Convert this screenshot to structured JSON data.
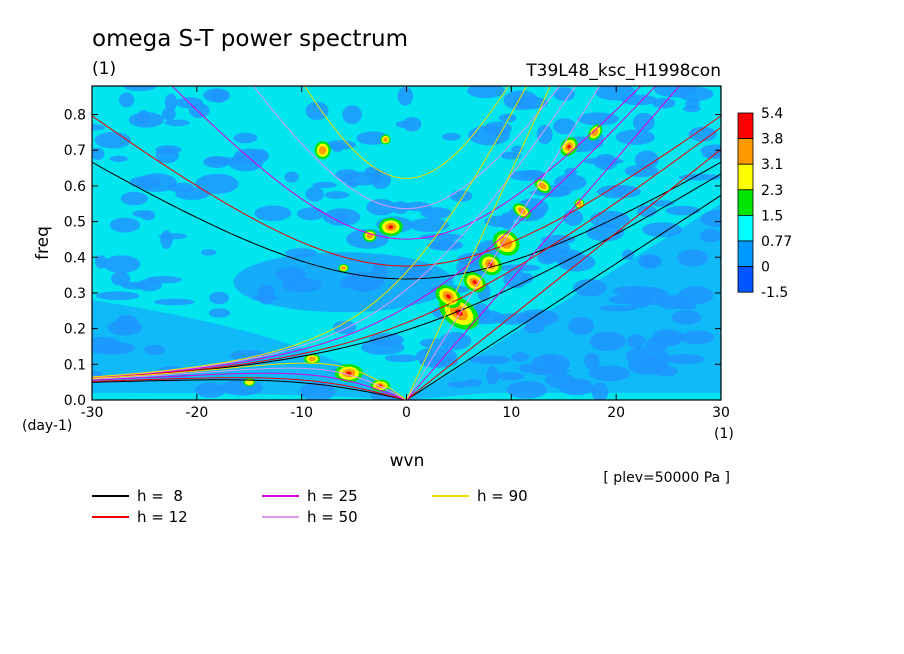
{
  "chart_data": {
    "type": "heatmap",
    "title": "omega S-T power spectrum",
    "subtitle_left": "(1)",
    "subtitle_right": "T39L48_ksc_H1998con",
    "xlabel": "wvn",
    "ylabel": "freq",
    "x_unit": "(1)",
    "y_unit": "(day-1)",
    "annotation": "[ plev=50000 Pa ]",
    "xlim": [
      -30,
      30
    ],
    "ylim": [
      0,
      0.88
    ],
    "xticks": [
      "-30",
      "-20",
      "-10",
      "0",
      "10",
      "20",
      "30"
    ],
    "yticks": [
      "0.0",
      "0.1",
      "0.2",
      "0.3",
      "0.4",
      "0.5",
      "0.6",
      "0.7",
      "0.8"
    ],
    "colorbar": {
      "labels": [
        "5.4",
        "3.8",
        "3.1",
        "2.3",
        "1.5",
        "0.77",
        "0",
        "-1.5"
      ],
      "colors": [
        "#ff0000",
        "#ff9900",
        "#ffff00",
        "#00e600",
        "#00ffff",
        "#0099ff",
        "#0055ff"
      ]
    },
    "background_level_color": "#00e5ee",
    "low_level_color": "#1e96ff",
    "dispersion_curves": [
      {
        "name": "h =  8",
        "h": 8,
        "color": "#000000"
      },
      {
        "name": "h = 12",
        "h": 12,
        "color": "#ee0000"
      },
      {
        "name": "h = 25",
        "h": 25,
        "color": "#dd00dd"
      },
      {
        "name": "h = 50",
        "h": 50,
        "color": "#dd99ee"
      },
      {
        "name": "h = 90",
        "h": 90,
        "color": "#eedd00"
      }
    ],
    "legend_placement": "bottom-left"
  }
}
